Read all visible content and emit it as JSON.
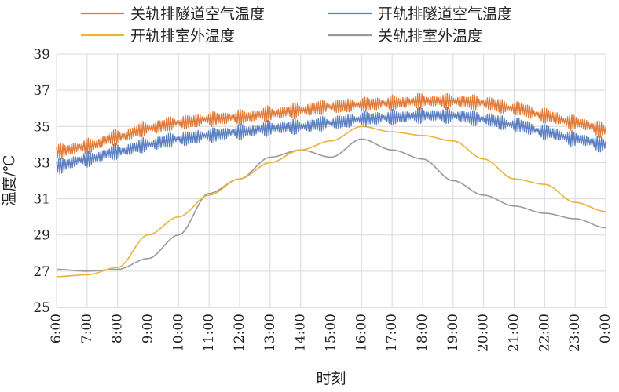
{
  "chart_data": {
    "type": "line",
    "xlabel": "时刻",
    "ylabel": "温度/℃",
    "ylim": [
      25,
      39
    ],
    "y_ticks": [
      "25",
      "27",
      "29",
      "31",
      "33",
      "35",
      "37",
      "39"
    ],
    "x_ticks": [
      "6:00",
      "7:00",
      "8:00",
      "9:00",
      "10:00",
      "11:00",
      "12:00",
      "13:00",
      "14:00",
      "15:00",
      "16:00",
      "17:00",
      "18:00",
      "19:00",
      "20:00",
      "21:00",
      "22:00",
      "23:00",
      "0:00"
    ],
    "grid": "vertical-and-horizontal",
    "legend_position": "top",
    "series": [
      {
        "name": "关轨排隧道空气温度",
        "color": "#E07B39",
        "noisy": true,
        "x": [
          "6:00",
          "7:00",
          "8:00",
          "9:00",
          "10:00",
          "11:00",
          "12:00",
          "13:00",
          "14:00",
          "15:00",
          "16:00",
          "17:00",
          "18:00",
          "19:00",
          "20:00",
          "21:00",
          "22:00",
          "23:00",
          "0:00"
        ],
        "values": [
          33.6,
          33.9,
          34.4,
          34.9,
          35.2,
          35.4,
          35.5,
          35.7,
          35.9,
          36.1,
          36.2,
          36.3,
          36.4,
          36.4,
          36.3,
          36.0,
          35.6,
          35.2,
          34.8
        ]
      },
      {
        "name": "开轨排隧道空气温度",
        "color": "#5B7FC1",
        "noisy": true,
        "x": [
          "6:00",
          "7:00",
          "8:00",
          "9:00",
          "10:00",
          "11:00",
          "12:00",
          "13:00",
          "14:00",
          "15:00",
          "16:00",
          "17:00",
          "18:00",
          "19:00",
          "20:00",
          "21:00",
          "22:00",
          "23:00",
          "0:00"
        ],
        "values": [
          32.8,
          33.2,
          33.6,
          34.0,
          34.3,
          34.5,
          34.7,
          34.9,
          35.0,
          35.2,
          35.4,
          35.5,
          35.6,
          35.6,
          35.4,
          35.1,
          34.7,
          34.3,
          34.0
        ]
      },
      {
        "name": "开轨排室外温度",
        "color": "#E8B33A",
        "noisy": false,
        "x": [
          "6:00",
          "7:00",
          "8:00",
          "9:00",
          "10:00",
          "11:00",
          "12:00",
          "13:00",
          "14:00",
          "15:00",
          "16:00",
          "17:00",
          "18:00",
          "19:00",
          "20:00",
          "21:00",
          "22:00",
          "23:00",
          "0:00"
        ],
        "values": [
          26.7,
          26.8,
          27.2,
          29.0,
          30.0,
          31.2,
          32.1,
          33.0,
          33.7,
          34.2,
          35.0,
          34.7,
          34.5,
          34.2,
          33.2,
          32.1,
          31.8,
          30.8,
          30.3
        ]
      },
      {
        "name": "关轨排室外温度",
        "color": "#9A9A9A",
        "noisy": false,
        "x": [
          "6:00",
          "7:00",
          "8:00",
          "9:00",
          "10:00",
          "11:00",
          "12:00",
          "13:00",
          "14:00",
          "15:00",
          "16:00",
          "17:00",
          "18:00",
          "19:00",
          "20:00",
          "21:00",
          "22:00",
          "23:00",
          "0:00"
        ],
        "values": [
          27.1,
          27.0,
          27.1,
          27.7,
          29.0,
          31.3,
          32.1,
          33.3,
          33.7,
          33.3,
          34.3,
          33.7,
          33.2,
          32.0,
          31.2,
          30.6,
          30.2,
          29.9,
          29.4
        ]
      }
    ]
  }
}
